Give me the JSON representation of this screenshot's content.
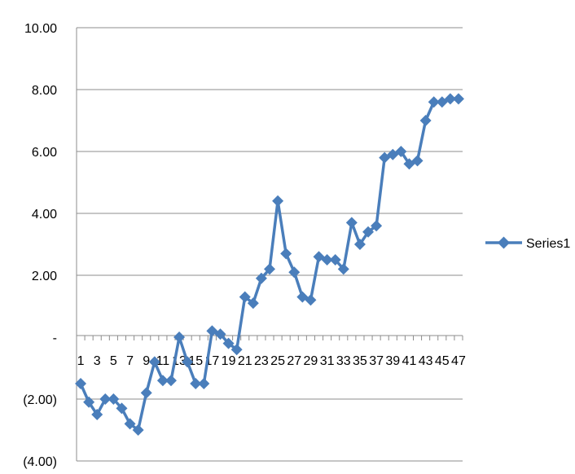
{
  "chart_data": {
    "type": "line",
    "title": "",
    "xlabel": "",
    "ylabel": "",
    "ylim": [
      -4,
      10
    ],
    "yticks": [
      10,
      8,
      6,
      4,
      2,
      0,
      -2,
      -4
    ],
    "ytick_labels": [
      "10.00",
      "8.00",
      "6.00",
      "4.00",
      "2.00",
      "-",
      "(2.00)",
      "(4.00)"
    ],
    "x": [
      1,
      2,
      3,
      4,
      5,
      6,
      7,
      8,
      9,
      10,
      11,
      12,
      13,
      14,
      15,
      16,
      17,
      18,
      19,
      20,
      21,
      22,
      23,
      24,
      25,
      26,
      27,
      28,
      29,
      30,
      31,
      32,
      33,
      34,
      35,
      36,
      37,
      38,
      39,
      40,
      41,
      42,
      43,
      44,
      45,
      46,
      47
    ],
    "xtick_labels": [
      "1",
      "3",
      "5",
      "7",
      "9",
      "11",
      "13",
      "15",
      "17",
      "19",
      "21",
      "23",
      "25",
      "27",
      "29",
      "31",
      "33",
      "35",
      "37",
      "39",
      "41",
      "43",
      "45",
      "47"
    ],
    "grid": true,
    "legend_position": "right",
    "series": [
      {
        "name": "Series1",
        "color": "#4a7ebb",
        "values": [
          -1.5,
          -2.1,
          -2.5,
          -2.0,
          -2.0,
          -2.3,
          -2.8,
          -3.0,
          -1.8,
          -0.8,
          -1.4,
          -1.4,
          0.0,
          -0.8,
          -1.5,
          -1.5,
          0.2,
          0.1,
          -0.2,
          -0.4,
          1.3,
          1.1,
          1.9,
          2.2,
          4.4,
          2.7,
          2.1,
          1.3,
          1.2,
          2.6,
          2.5,
          2.5,
          2.2,
          3.7,
          3.0,
          3.4,
          3.6,
          5.8,
          5.9,
          6.0,
          5.6,
          5.7,
          7.0,
          7.6,
          7.6,
          7.7,
          7.7
        ]
      }
    ]
  }
}
